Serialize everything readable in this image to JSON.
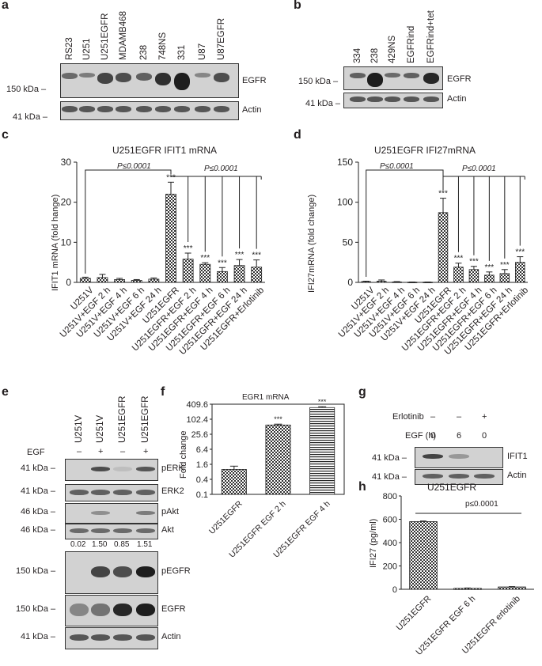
{
  "panels": {
    "a": {
      "label": "a",
      "lanes": [
        "RS23",
        "U251",
        "U251EGFR",
        "MDAMB468",
        "238",
        "748NS",
        "331",
        "U87",
        "U87EGFR"
      ],
      "mw_top": "150 kDa –",
      "mw_bottom": "41 kDa –",
      "blot_top": "EGFR",
      "blot_bottom": "Actin"
    },
    "b": {
      "label": "b",
      "lanes": [
        "334",
        "238",
        "429NS",
        "EGFRind",
        "EGFRind+tet"
      ],
      "mw_top": "150 kDa –",
      "mw_bottom": "41 kDa –",
      "blot_top": "EGFR",
      "blot_bottom": "Actin"
    },
    "c": {
      "label": "c",
      "pval_left": "P≤0.0001",
      "pval_right": "P≤0.0001"
    },
    "d": {
      "label": "d",
      "pval_left": "P≤0.0001",
      "pval_right": "P≤0.0001"
    },
    "e": {
      "label": "e",
      "lanes": [
        "U251V",
        "U251V",
        "U251EGFR",
        "U251EGFR"
      ],
      "egf_label": "EGF",
      "egf_signs": [
        "–",
        "+",
        "–",
        "+"
      ],
      "quant": [
        "0.02",
        "1.50",
        "0.85",
        "1.51"
      ],
      "rows": [
        {
          "mw": "41 kDa –",
          "name": "pERK"
        },
        {
          "mw": "41 kDa –",
          "name": "ERK2"
        },
        {
          "mw": "46 kDa –",
          "name": "pAkt"
        },
        {
          "mw": "46 kDa –",
          "name": "Akt"
        },
        {
          "mw": "150 kDa –",
          "name": "pEGFR"
        },
        {
          "mw": "150 kDa –",
          "name": "EGFR"
        },
        {
          "mw": "41 kDa –",
          "name": "Actin"
        }
      ]
    },
    "f": {
      "label": "f"
    },
    "g": {
      "label": "g",
      "erlotinib_label": "Erlotinib",
      "erlotinib_signs": [
        "–",
        "–",
        "+"
      ],
      "egf_label": "EGF (h)",
      "egf_values": [
        "0",
        "6",
        "0"
      ],
      "mw_top": "41 kDa –",
      "mw_bottom": "41 kDa –",
      "blot_top": "IFIT1",
      "blot_bottom": "Actin"
    },
    "h": {
      "label": "h",
      "pval": "p≤0.0001"
    }
  },
  "chart_data": [
    {
      "id": "c",
      "type": "bar",
      "title": "U251EGFR IFIT1 mRNA",
      "ylabel": "IFIT1 mRNA (fold hange)",
      "ylim": [
        0,
        30
      ],
      "yticks": [
        0,
        10,
        20,
        30
      ],
      "categories": [
        "U251V",
        "U251V+EGF 2 h",
        "U251V+EGF 4 h",
        "U251V+EGF 6 h",
        "U251V+EGF 24 h",
        "U251EGFR",
        "U251EGFR+EGF 2 h",
        "U251EGFR+EGF 4 h",
        "U251EGFR+EGF 6 h",
        "U251EGFR+EGF 24 h",
        "U251EGFR+Erlotinib"
      ],
      "values": [
        1.0,
        1.2,
        0.7,
        0.5,
        0.8,
        22.0,
        5.8,
        4.5,
        2.7,
        4.2,
        3.8
      ],
      "errors": [
        0.3,
        0.8,
        0.3,
        0.2,
        0.3,
        3.0,
        1.5,
        0.4,
        1.0,
        1.5,
        1.8
      ],
      "significance": [
        "",
        "",
        "",
        "",
        "",
        "***",
        "***",
        "***",
        "***",
        "***",
        "***"
      ]
    },
    {
      "id": "d",
      "type": "bar",
      "title": "U251EGFR IFI27mRNA",
      "ylabel": "IFI27mRNA (fold change)",
      "ylim": [
        0,
        150
      ],
      "yticks": [
        0,
        50,
        100,
        150
      ],
      "categories": [
        "U251V",
        "U251V+EGF 2 h",
        "U251V+EGF 4 h",
        "U251V+EGF 6 h",
        "U251V+EGF 24 h",
        "U251EGFR",
        "U251EGFR+EGF 2 h",
        "U251EGFR+EGF 4 h",
        "U251EGFR+EGF 6 h",
        "U251EGFR+EGF 24 h",
        "U251EGFR+Erlotinib"
      ],
      "values": [
        1.0,
        1.5,
        0.5,
        0.3,
        0.3,
        87,
        19,
        16,
        9,
        11,
        25
      ],
      "errors": [
        0.5,
        1.5,
        0.5,
        0.2,
        0.2,
        18,
        5,
        4,
        4,
        5,
        7
      ],
      "significance": [
        "",
        "",
        "",
        "",
        "",
        "***",
        "***",
        "***",
        "***",
        "***",
        "***"
      ]
    },
    {
      "id": "f",
      "type": "bar",
      "title": "EGR1 mRNA",
      "ylabel": "Fold change",
      "yscale": "log",
      "ylim": [
        0.1,
        409.6
      ],
      "yticks": [
        "0.1",
        "0.4",
        "1.6",
        "6.4",
        "25.6",
        "102.4",
        "409.6"
      ],
      "categories": [
        "U251EGFR",
        "U251EGFR EGF 2 h",
        "U251EGFR EGF 4 h"
      ],
      "values": [
        1.0,
        60,
        300
      ],
      "errors": [
        0.35,
        5,
        25
      ],
      "significance": [
        "",
        "***",
        "***"
      ]
    },
    {
      "id": "h",
      "type": "bar",
      "title": "U251EGFR",
      "ylabel": "IFI27 (pg/ml)",
      "ylim": [
        0,
        800
      ],
      "yticks": [
        0,
        200,
        400,
        600,
        800
      ],
      "categories": [
        "U251EGFR",
        "U251EGFR EGF 6 h",
        "U251EGFR erlotinib"
      ],
      "values": [
        580,
        8,
        20
      ],
      "errors": [
        5,
        3,
        3
      ]
    }
  ]
}
